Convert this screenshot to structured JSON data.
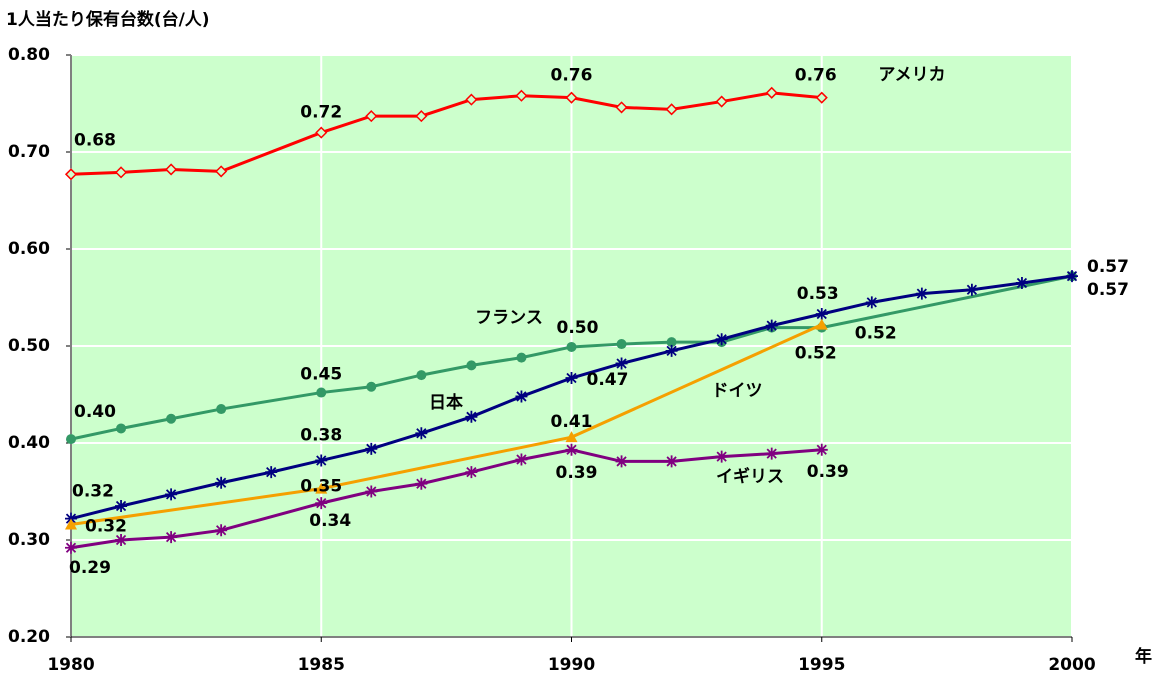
{
  "chart_data": {
    "type": "line",
    "title": "1人当たり保有台数(台/人)",
    "x_unit": "年",
    "xlim": [
      1980,
      2000
    ],
    "xticks": [
      1980,
      1985,
      1990,
      1995,
      2000
    ],
    "ylim": [
      0.2,
      0.8
    ],
    "yticks": [
      {
        "value": 0.2,
        "label": "0.20"
      },
      {
        "value": 0.3,
        "label": "0.30"
      },
      {
        "value": 0.4,
        "label": "0.40"
      },
      {
        "value": 0.5,
        "label": "0.50"
      },
      {
        "value": 0.6,
        "label": "0.60"
      },
      {
        "value": 0.7,
        "label": "0.70"
      },
      {
        "value": 0.8,
        "label": "0.80"
      }
    ],
    "grid": true,
    "background": "#ccffcc",
    "series": [
      {
        "name": "アメリカ",
        "color": "#ff0000",
        "marker": "diamond",
        "x": [
          1980,
          1981,
          1982,
          1983,
          1985,
          1986,
          1987,
          1988,
          1989,
          1990,
          1991,
          1992,
          1993,
          1994,
          1995
        ],
        "values": [
          0.677,
          0.679,
          0.682,
          0.68,
          0.72,
          0.737,
          0.737,
          0.754,
          0.758,
          0.756,
          0.746,
          0.744,
          0.752,
          0.761,
          0.756
        ],
        "value_labels": [
          "0.68",
          null,
          null,
          null,
          "0.72",
          null,
          null,
          null,
          null,
          "0.76",
          null,
          null,
          null,
          null,
          "0.76"
        ]
      },
      {
        "name": "フランス",
        "color": "#339966",
        "marker": "circle",
        "x": [
          1980,
          1981,
          1982,
          1983,
          1985,
          1986,
          1987,
          1988,
          1989,
          1990,
          1991,
          1992,
          1993,
          1994,
          1995,
          2000
        ],
        "values": [
          0.404,
          0.415,
          0.425,
          0.435,
          0.452,
          0.458,
          0.47,
          0.48,
          0.488,
          0.499,
          0.502,
          0.504,
          0.504,
          0.519,
          0.519,
          0.572
        ],
        "value_labels": [
          "0.40",
          null,
          null,
          null,
          "0.45",
          null,
          null,
          null,
          null,
          "0.50",
          null,
          null,
          null,
          null,
          "0.52",
          "0.57"
        ]
      },
      {
        "name": "日本",
        "color": "#000080",
        "marker": "asterisk",
        "x": [
          1980,
          1981,
          1982,
          1983,
          1984,
          1985,
          1986,
          1987,
          1988,
          1989,
          1990,
          1991,
          1992,
          1993,
          1994,
          1995,
          1996,
          1997,
          1998,
          1999,
          2000
        ],
        "values": [
          0.322,
          0.335,
          0.347,
          0.359,
          0.37,
          0.382,
          0.394,
          0.41,
          0.427,
          0.448,
          0.467,
          0.482,
          0.495,
          0.507,
          0.521,
          0.533,
          0.545,
          0.554,
          0.558,
          0.565,
          0.572
        ],
        "value_labels": [
          "0.32",
          null,
          null,
          null,
          null,
          "0.38",
          null,
          null,
          null,
          null,
          "0.47",
          null,
          null,
          null,
          null,
          "0.53",
          null,
          null,
          null,
          null,
          "0.57"
        ]
      },
      {
        "name": "ドイツ",
        "color": "#f5a000",
        "marker": "triangle",
        "x": [
          1980,
          1985,
          1990,
          1995
        ],
        "values": [
          0.316,
          0.353,
          0.406,
          0.522
        ],
        "value_labels": [
          "0.32",
          "0.35",
          "0.41",
          "0.52"
        ]
      },
      {
        "name": "イギリス",
        "color": "#800080",
        "marker": "asterisk",
        "x": [
          1980,
          1981,
          1982,
          1983,
          1985,
          1986,
          1987,
          1988,
          1989,
          1990,
          1991,
          1992,
          1993,
          1994,
          1995
        ],
        "values": [
          0.292,
          0.3,
          0.303,
          0.31,
          0.338,
          0.35,
          0.358,
          0.37,
          0.383,
          0.393,
          0.381,
          0.381,
          0.386,
          0.389,
          0.393
        ],
        "value_labels": [
          "0.29",
          null,
          null,
          null,
          "0.34",
          null,
          null,
          null,
          null,
          "0.39",
          null,
          null,
          null,
          null,
          "0.39"
        ]
      }
    ]
  }
}
